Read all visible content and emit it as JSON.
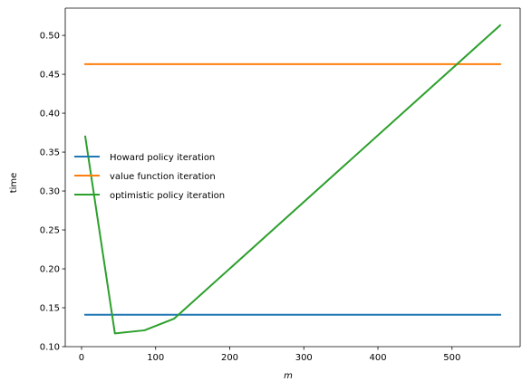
{
  "chart_data": {
    "type": "line",
    "xlabel": "m",
    "ylabel": "time",
    "xlim": [
      -22,
      592
    ],
    "ylim": [
      0.1,
      0.535
    ],
    "xticks": [
      0,
      100,
      200,
      300,
      400,
      500
    ],
    "xtick_labels": [
      "0",
      "100",
      "200",
      "300",
      "400",
      "500"
    ],
    "yticks": [
      0.1,
      0.15,
      0.2,
      0.25,
      0.3,
      0.35,
      0.4,
      0.45,
      0.5
    ],
    "ytick_labels": [
      "0.10",
      "0.15",
      "0.20",
      "0.25",
      "0.30",
      "0.35",
      "0.40",
      "0.45",
      "0.50"
    ],
    "grid": false,
    "legend_position": "center-left",
    "series": [
      {
        "name": "Howard policy iteration",
        "color": "#1f77b4",
        "x": [
          5,
          565
        ],
        "y": [
          0.141,
          0.141
        ]
      },
      {
        "name": "value function iteration",
        "color": "#ff7f0e",
        "x": [
          5,
          565
        ],
        "y": [
          0.463,
          0.463
        ]
      },
      {
        "name": "optimistic policy iteration",
        "color": "#2ca02c",
        "x": [
          5,
          45,
          85,
          125,
          565
        ],
        "y": [
          0.37,
          0.117,
          0.121,
          0.136,
          0.513
        ]
      }
    ]
  }
}
